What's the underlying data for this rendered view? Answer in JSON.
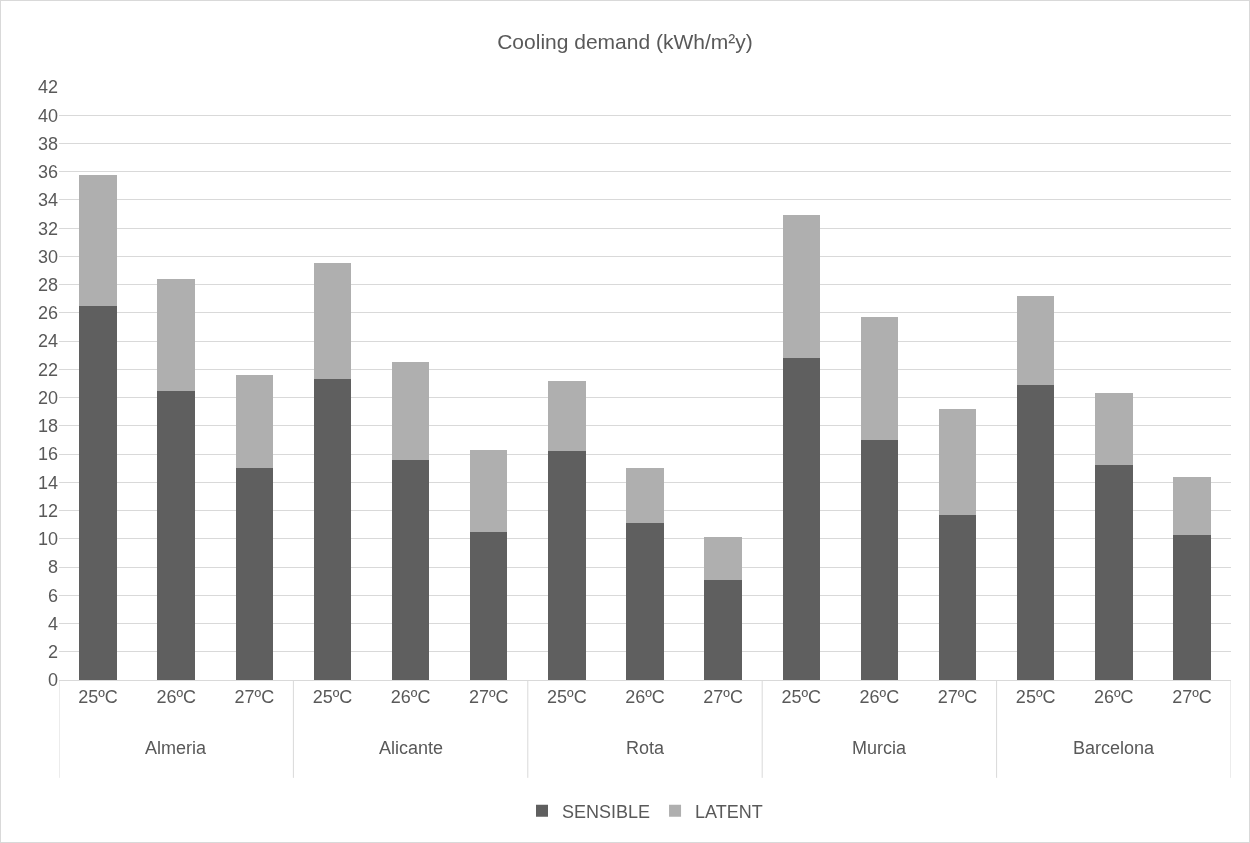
{
  "chart_data": {
    "type": "bar",
    "title": "Cooling demand (kWh/m²y)",
    "categories": [
      "25ºC",
      "26ºC",
      "27ºC",
      "25ºC",
      "26ºC",
      "27ºC",
      "25ºC",
      "26ºC",
      "27ºC",
      "25ºC",
      "26ºC",
      "27ºC",
      "25ºC",
      "26ºC",
      "27ºC"
    ],
    "annotations": [
      "Almeria",
      "Alicante",
      "Rota",
      "Murcia",
      "Barcelona"
    ],
    "series": [
      {
        "name": "SENSIBLE",
        "color": "#5f5f5f",
        "values": [
          26.5,
          20.5,
          15.0,
          21.3,
          15.6,
          10.5,
          16.2,
          11.1,
          7.1,
          22.8,
          17.0,
          11.7,
          20.9,
          15.2,
          10.3
        ]
      },
      {
        "name": "LATENT",
        "color": "#afafaf",
        "values": [
          9.3,
          7.9,
          6.6,
          8.2,
          6.9,
          5.8,
          5.0,
          3.9,
          3.0,
          10.1,
          8.7,
          7.5,
          6.3,
          5.1,
          4.1
        ]
      }
    ],
    "stacked": true,
    "ylim": [
      0,
      42
    ],
    "yticks": [
      0,
      2,
      4,
      6,
      8,
      10,
      12,
      14,
      16,
      18,
      20,
      22,
      24,
      26,
      28,
      30,
      32,
      34,
      36,
      38,
      40,
      42
    ],
    "grid": "y",
    "legend": "bottom"
  }
}
